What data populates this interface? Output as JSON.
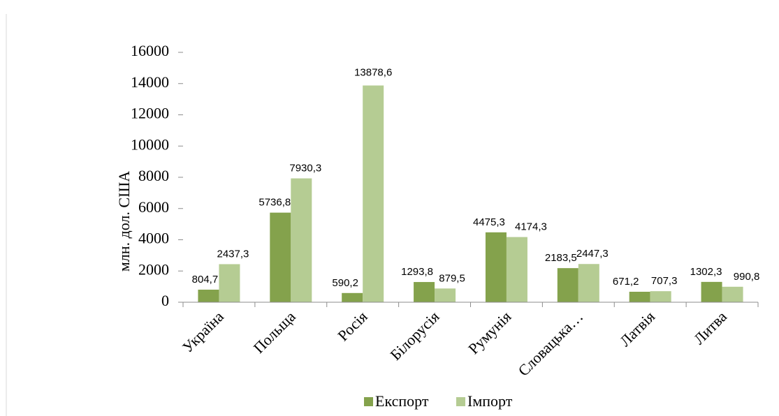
{
  "chart_data": {
    "type": "bar",
    "categories": [
      "Україна",
      "Польща",
      "Росія",
      "Білорусія",
      "Румунія",
      "Словацька…",
      "Латвія",
      "Литва"
    ],
    "series": [
      {
        "name": "Експорт",
        "color": "#84a24c",
        "values": [
          804.7,
          5736.8,
          590.2,
          1293.8,
          4475.3,
          2183.5,
          671.2,
          1302.3
        ],
        "labels": [
          "804,7",
          "5736,8",
          "590,2",
          "1293,8",
          "4475,3",
          "2183,5",
          "671,2",
          "1302,3"
        ]
      },
      {
        "name": "Імпорт",
        "color": "#b5cc93",
        "values": [
          2437.3,
          7930.3,
          13878.6,
          879.5,
          4174.3,
          2447.3,
          707.3,
          990.8
        ],
        "labels": [
          "2437,3",
          "7930,3",
          "13878,6",
          "879,5",
          "4174,3",
          "2447,3",
          "707,3",
          "990,8"
        ]
      }
    ],
    "ylabel": "млн. дол. США",
    "ylim": [
      0,
      16000
    ],
    "yticks": [
      0,
      2000,
      4000,
      6000,
      8000,
      10000,
      12000,
      14000,
      16000
    ],
    "grid": false,
    "legend_position": "bottom"
  }
}
